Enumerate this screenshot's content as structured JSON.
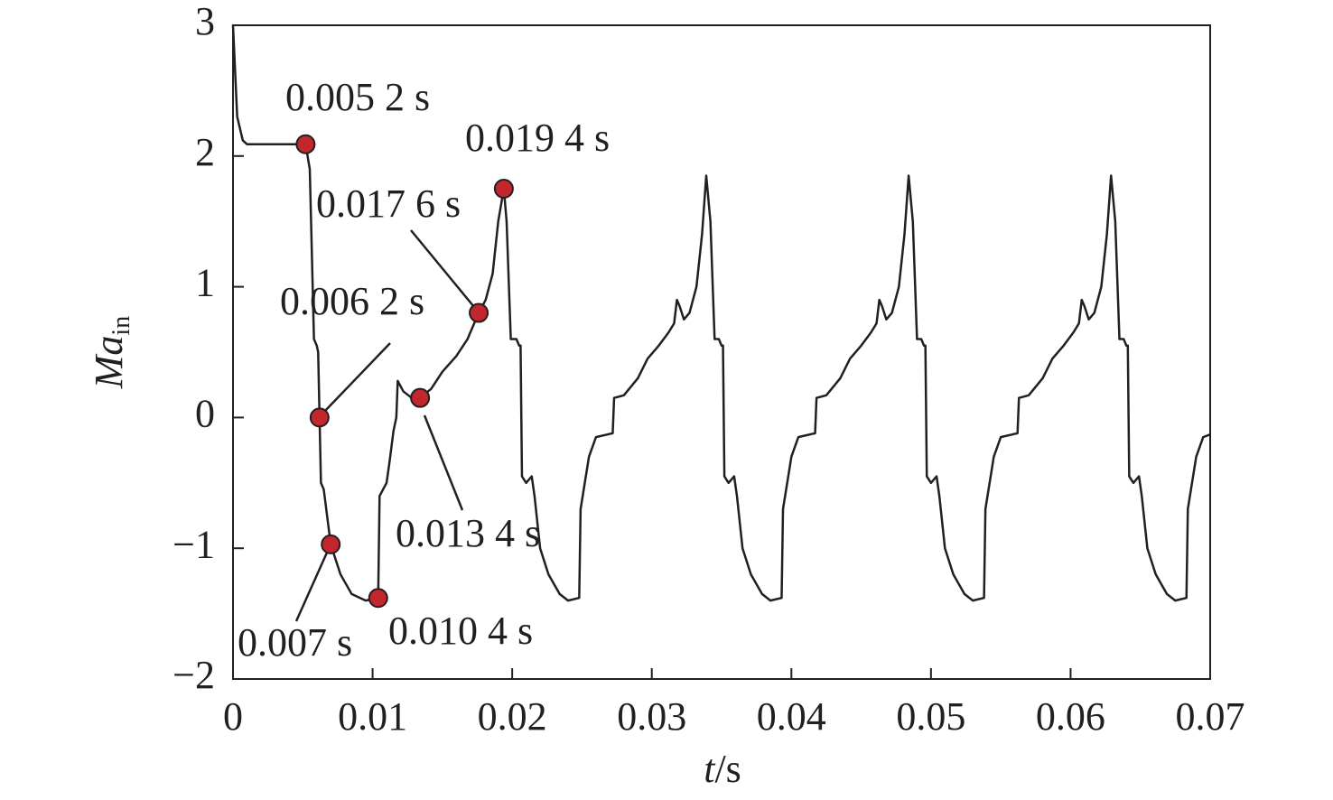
{
  "chart_data": {
    "type": "line",
    "xlabel": {
      "italic": "t",
      "rest": "/s"
    },
    "ylabel": {
      "text": "Ma",
      "subscript": "in"
    },
    "xlim": [
      0,
      0.07
    ],
    "ylim": [
      -2,
      3
    ],
    "xticks": [
      0,
      0.01,
      0.02,
      0.03,
      0.04,
      0.05,
      0.06,
      0.07
    ],
    "yticks": [
      {
        "value": -2,
        "label": "−2"
      },
      {
        "value": -1,
        "label": "−1"
      },
      0,
      1,
      2,
      3
    ],
    "series": [
      {
        "color": "#231f20",
        "x": [
          0,
          0.0003,
          0.0007,
          0.001,
          0.0052,
          0.0055,
          0.0058,
          0.006,
          0.0061,
          0.0062,
          0.0063,
          0.0065,
          0.007,
          0.0077,
          0.0085,
          0.0095,
          0.0104,
          0.0105,
          0.011,
          0.0112,
          0.0115,
          0.0117,
          0.0118,
          0.0122,
          0.0128,
          0.0134,
          0.0142,
          0.015,
          0.016,
          0.0168,
          0.0172,
          0.0176,
          0.0181,
          0.0186,
          0.019,
          0.0194,
          0.0196,
          0.0199,
          0.0203,
          0.0205,
          0.0206,
          0.0207,
          0.021,
          0.0214,
          0.0216,
          0.022,
          0.0226,
          0.0234,
          0.024,
          0.0248,
          0.0249,
          0.0255,
          0.026,
          0.0272,
          0.0273,
          0.028,
          0.029,
          0.0297,
          0.0305,
          0.0312,
          0.0316,
          0.0318,
          0.032,
          0.0323,
          0.0327,
          0.0332,
          0.0336,
          0.0339,
          0.0342,
          0.0345,
          0.0348,
          0.035,
          0.0351,
          0.0352,
          0.0355,
          0.0359,
          0.0361,
          0.0365,
          0.0371,
          0.0379,
          0.0385,
          0.0393,
          0.0394,
          0.04,
          0.0405,
          0.0417,
          0.0418,
          0.0425,
          0.0435,
          0.0442,
          0.045,
          0.0457,
          0.0461,
          0.0463,
          0.0465,
          0.0468,
          0.0472,
          0.0477,
          0.0481,
          0.0484,
          0.0487,
          0.049,
          0.0493,
          0.0495,
          0.0496,
          0.0497,
          0.05,
          0.0504,
          0.0506,
          0.051,
          0.0516,
          0.0524,
          0.053,
          0.0538,
          0.0539,
          0.0545,
          0.055,
          0.0562,
          0.0563,
          0.057,
          0.058,
          0.0587,
          0.0595,
          0.0602,
          0.0606,
          0.0608,
          0.061,
          0.0613,
          0.0617,
          0.0622,
          0.0626,
          0.0629,
          0.0632,
          0.0635,
          0.0638,
          0.064,
          0.0641,
          0.0642,
          0.0645,
          0.0649,
          0.0651,
          0.0655,
          0.0661,
          0.0669,
          0.0675,
          0.0683,
          0.0684,
          0.069,
          0.0695,
          0.07
        ],
        "values": [
          3.0,
          2.3,
          2.12,
          2.09,
          2.09,
          1.9,
          0.6,
          0.55,
          0.5,
          0,
          -0.5,
          -0.55,
          -0.97,
          -1.2,
          -1.35,
          -1.4,
          -1.38,
          -0.6,
          -0.5,
          -0.35,
          -0.1,
          0.0,
          0.28,
          0.2,
          0.15,
          0.15,
          0.22,
          0.35,
          0.47,
          0.6,
          0.7,
          0.8,
          0.9,
          1.1,
          1.5,
          1.75,
          1.5,
          0.6,
          0.6,
          0.55,
          0.55,
          -0.45,
          -0.5,
          -0.45,
          -0.6,
          -1.0,
          -1.2,
          -1.35,
          -1.4,
          -1.38,
          -0.7,
          -0.3,
          -0.15,
          -0.12,
          0.15,
          0.17,
          0.3,
          0.45,
          0.55,
          0.65,
          0.72,
          0.9,
          0.85,
          0.75,
          0.8,
          1.0,
          1.4,
          1.85,
          1.5,
          0.6,
          0.6,
          0.55,
          0.55,
          -0.45,
          -0.5,
          -0.45,
          -0.6,
          -1.0,
          -1.2,
          -1.35,
          -1.4,
          -1.38,
          -0.7,
          -0.3,
          -0.15,
          -0.12,
          0.15,
          0.17,
          0.3,
          0.45,
          0.55,
          0.65,
          0.72,
          0.9,
          0.85,
          0.75,
          0.8,
          1.0,
          1.4,
          1.85,
          1.5,
          0.6,
          0.6,
          0.55,
          0.55,
          -0.45,
          -0.5,
          -0.45,
          -0.6,
          -1.0,
          -1.2,
          -1.35,
          -1.4,
          -1.38,
          -0.7,
          -0.3,
          -0.15,
          -0.12,
          0.15,
          0.17,
          0.3,
          0.45,
          0.55,
          0.65,
          0.72,
          0.9,
          0.85,
          0.75,
          0.8,
          1.0,
          1.4,
          1.85,
          1.5,
          0.6,
          0.6,
          0.55,
          0.55,
          -0.45,
          -0.5,
          -0.45,
          -0.6,
          -1.0,
          -1.2,
          -1.35,
          -1.4,
          -1.38,
          -0.7,
          -0.3,
          -0.15,
          -0.13
        ]
      }
    ],
    "markers": {
      "color": "#c1272d",
      "x": [
        0.0052,
        0.0062,
        0.007,
        0.0104,
        0.0134,
        0.0176,
        0.0194
      ],
      "values": [
        2.09,
        0,
        -0.97,
        -1.38,
        0.15,
        0.8,
        1.75
      ],
      "labels": [
        "0.005 2 s",
        "0.006 2 s",
        "0.007 s",
        "0.010 4 s",
        "0.013 4 s",
        "0.017 6 s",
        "0.019 4 s"
      ]
    }
  }
}
